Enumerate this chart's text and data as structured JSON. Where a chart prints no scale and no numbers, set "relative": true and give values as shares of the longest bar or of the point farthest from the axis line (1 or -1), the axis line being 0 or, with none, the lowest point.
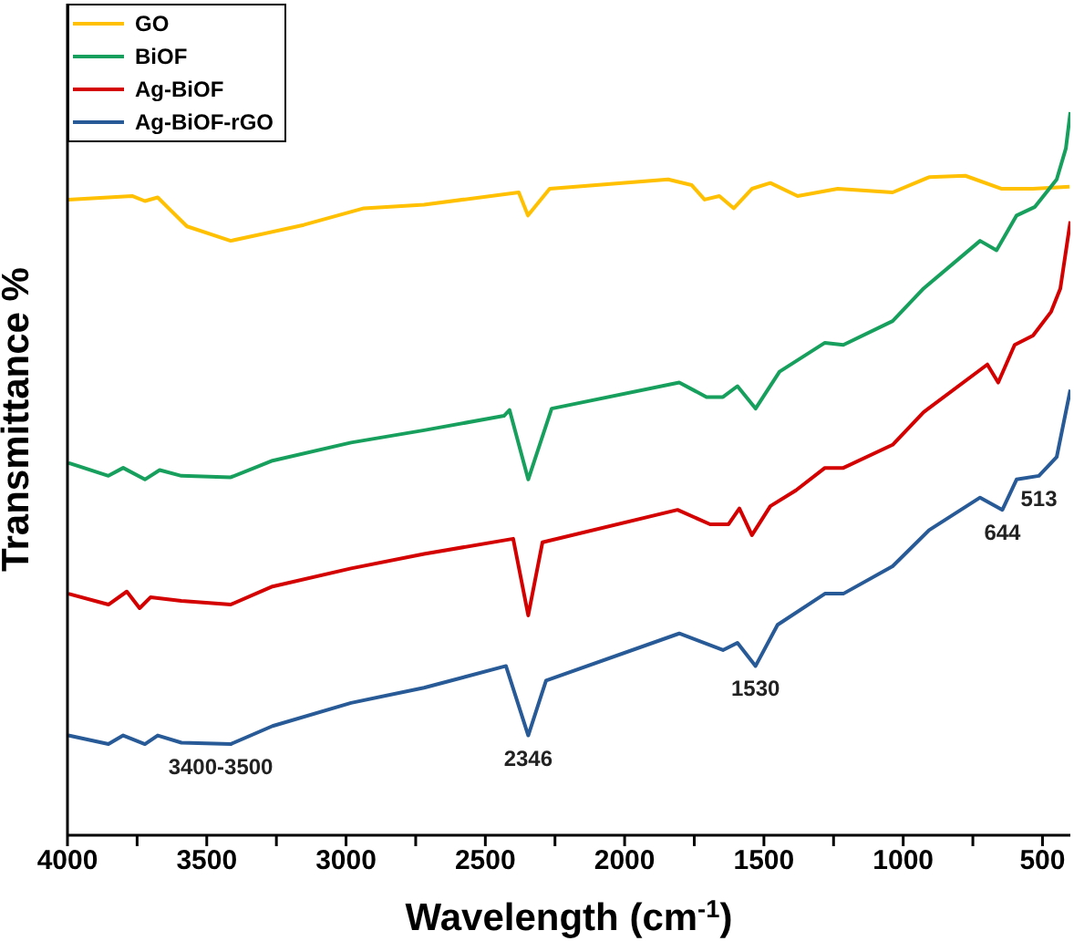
{
  "chart_data": {
    "type": "line",
    "relative": true,
    "xlabel": "Wavelength (cm$^{-1}$)",
    "ylabel": "Transmittance %",
    "xlim": [
      4000,
      400
    ],
    "xticks": [
      4000,
      {
        "value": 3750,
        "label": null
      },
      3500,
      {
        "value": 3250,
        "label": null
      },
      3000,
      {
        "value": 2750,
        "label": null
      },
      2500,
      {
        "value": 2250,
        "label": null
      },
      2000,
      {
        "value": 1750,
        "label": null
      },
      1500,
      {
        "value": 1250,
        "label": null
      },
      1000,
      {
        "value": 750,
        "label": null
      },
      500
    ],
    "legend": "top left",
    "marker": "none",
    "line_style": "solid",
    "series": [
      {
        "name": "GO",
        "color": "#ffc000",
        "x": [
          3997,
          3768,
          3722,
          3676,
          3637,
          3571,
          3414,
          3329,
          3152,
          2936,
          2720,
          2380,
          2347,
          2269,
          1844,
          1759,
          1713,
          1660,
          1608,
          1543,
          1477,
          1379,
          1235,
          1038,
          907,
          777,
          646,
          534,
          403
        ],
        "values": [
          0.879,
          0.884,
          0.877,
          0.882,
          0.867,
          0.842,
          0.822,
          0.829,
          0.844,
          0.867,
          0.872,
          0.889,
          0.857,
          0.894,
          0.907,
          0.899,
          0.879,
          0.884,
          0.867,
          0.894,
          0.902,
          0.884,
          0.894,
          0.889,
          0.91,
          0.912,
          0.894,
          0.894,
          0.897
        ]
      },
      {
        "name": "BiOF",
        "color": "#17a05d",
        "x": [
          3997,
          3853,
          3800,
          3722,
          3669,
          3591,
          3414,
          3264,
          2982,
          2720,
          2433,
          2413,
          2346,
          2262,
          1804,
          1706,
          1647,
          1595,
          1530,
          1444,
          1281,
          1215,
          1038,
          927,
          724,
          665,
          593,
          527,
          449,
          416,
          400
        ],
        "values": [
          0.515,
          0.497,
          0.508,
          0.492,
          0.505,
          0.497,
          0.495,
          0.518,
          0.543,
          0.56,
          0.58,
          0.588,
          0.492,
          0.59,
          0.626,
          0.606,
          0.606,
          0.621,
          0.59,
          0.641,
          0.681,
          0.678,
          0.711,
          0.756,
          0.822,
          0.809,
          0.857,
          0.869,
          0.907,
          0.95,
          1.0
        ]
      },
      {
        "name": "Ag-BiOF",
        "color": "#d40000",
        "x": [
          3997,
          3853,
          3787,
          3741,
          3702,
          3591,
          3414,
          3264,
          2982,
          2720,
          2400,
          2346,
          2295,
          1810,
          1693,
          1627,
          1588,
          1543,
          1477,
          1385,
          1281,
          1215,
          1038,
          927,
          698,
          659,
          600,
          534,
          469,
          436,
          400
        ],
        "values": [
          0.334,
          0.319,
          0.337,
          0.314,
          0.329,
          0.324,
          0.319,
          0.344,
          0.369,
          0.389,
          0.41,
          0.304,
          0.405,
          0.45,
          0.43,
          0.43,
          0.452,
          0.415,
          0.455,
          0.477,
          0.508,
          0.508,
          0.54,
          0.585,
          0.651,
          0.626,
          0.678,
          0.691,
          0.724,
          0.756,
          0.849
        ]
      },
      {
        "name": "Ag-BiOF-rGO",
        "color": "#275a96",
        "x": [
          3997,
          3853,
          3800,
          3722,
          3676,
          3591,
          3414,
          3264,
          2982,
          2720,
          2426,
          2346,
          2282,
          1804,
          1647,
          1595,
          1530,
          1451,
          1281,
          1215,
          1038,
          907,
          724,
          644,
          593,
          513,
          449,
          400
        ],
        "values": [
          0.138,
          0.126,
          0.138,
          0.126,
          0.138,
          0.128,
          0.126,
          0.151,
          0.183,
          0.204,
          0.234,
          0.138,
          0.214,
          0.279,
          0.256,
          0.266,
          0.234,
          0.291,
          0.334,
          0.334,
          0.372,
          0.422,
          0.467,
          0.45,
          0.492,
          0.497,
          0.523,
          0.616
        ]
      }
    ],
    "annotations": [
      {
        "text": "3400-3500",
        "x": 3450,
        "y": 0.126
      },
      {
        "text": "2346",
        "x": 2346,
        "y": 0.138
      },
      {
        "text": "1530",
        "x": 1530,
        "y": 0.234
      },
      {
        "text": "644",
        "x": 644,
        "y": 0.45
      },
      {
        "text": "513",
        "x": 513,
        "y": 0.497
      }
    ]
  }
}
